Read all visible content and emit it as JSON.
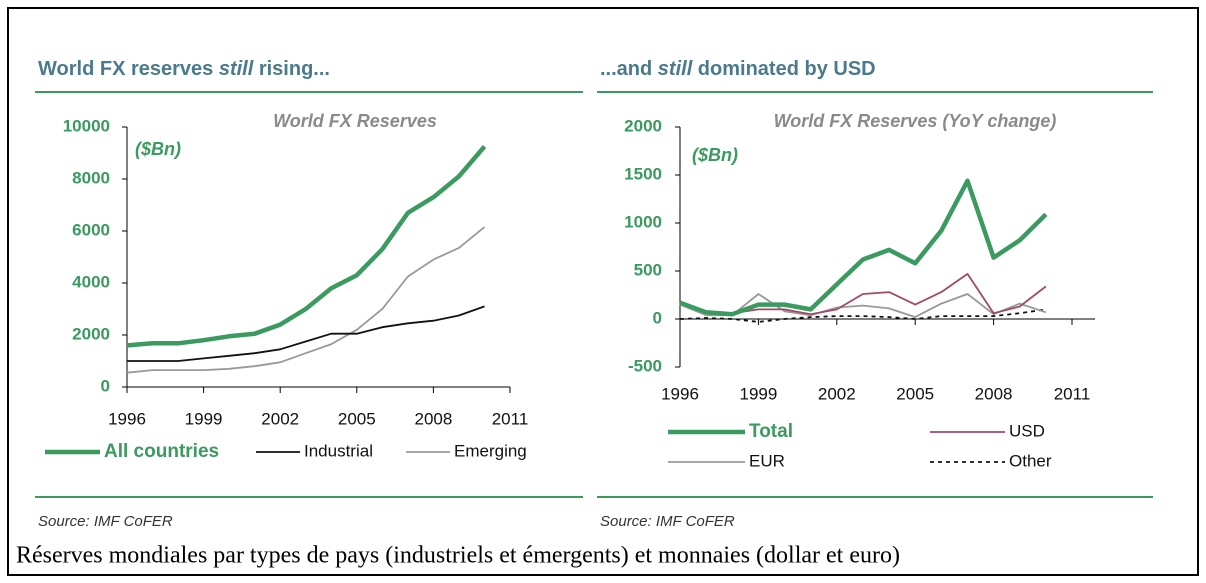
{
  "chart_data": [
    {
      "type": "line",
      "header": [
        "World FX reserves ",
        "still",
        " rising..."
      ],
      "title": "World FX Reserves",
      "unit_label": "($Bn)",
      "source": "Source: IMF CoFER",
      "x": [
        1996,
        1997,
        1998,
        1999,
        2000,
        2001,
        2002,
        2003,
        2004,
        2005,
        2006,
        2007,
        2008,
        2009,
        2010
      ],
      "xlim": [
        1996,
        2011
      ],
      "xticks": [
        1996,
        1999,
        2002,
        2005,
        2008,
        2011
      ],
      "ylim": [
        0,
        10000
      ],
      "yticks": [
        0,
        2000,
        4000,
        6000,
        8000,
        10000
      ],
      "series": [
        {
          "name": "All countries",
          "color": "#3a9a5f",
          "line": "thick",
          "values": [
            1600,
            1680,
            1680,
            1800,
            1950,
            2050,
            2400,
            3000,
            3800,
            4300,
            5300,
            6700,
            7300,
            8100,
            9250
          ]
        },
        {
          "name": "Industrial",
          "color": "#111111",
          "line": "thin",
          "values": [
            1000,
            1000,
            1000,
            1100,
            1200,
            1300,
            1450,
            1750,
            2050,
            2050,
            2300,
            2450,
            2550,
            2750,
            3100
          ]
        },
        {
          "name": "Emerging",
          "color": "#999999",
          "line": "thin",
          "values": [
            550,
            650,
            650,
            650,
            700,
            800,
            950,
            1300,
            1650,
            2200,
            3000,
            4250,
            4900,
            5350,
            6150
          ]
        }
      ]
    },
    {
      "type": "line",
      "header": [
        "...and ",
        "still",
        " dominated by USD"
      ],
      "title": "World FX Reserves (YoY change)",
      "unit_label": "($Bn)",
      "source": "Source: IMF CoFER",
      "x": [
        1996,
        1997,
        1998,
        1999,
        2000,
        2001,
        2002,
        2003,
        2004,
        2005,
        2006,
        2007,
        2008,
        2009,
        2010
      ],
      "xlim": [
        1996,
        2011
      ],
      "xticks": [
        1996,
        1999,
        2002,
        2005,
        2008,
        2011
      ],
      "ylim": [
        -500,
        2000
      ],
      "yticks": [
        -500,
        0,
        500,
        1000,
        1500,
        2000
      ],
      "series": [
        {
          "name": "Total",
          "color": "#3a9a5f",
          "line": "thick",
          "values": [
            170,
            70,
            50,
            150,
            150,
            100,
            360,
            620,
            720,
            580,
            920,
            1440,
            640,
            820,
            1090
          ]
        },
        {
          "name": "USD",
          "color": "#a04a6a",
          "line": "thin",
          "values": [
            180,
            80,
            60,
            100,
            100,
            50,
            100,
            260,
            280,
            150,
            280,
            470,
            60,
            130,
            340
          ]
        },
        {
          "name": "EUR",
          "color": "#999999",
          "line": "thin",
          "values": [
            150,
            40,
            40,
            260,
            80,
            40,
            120,
            140,
            110,
            20,
            160,
            260,
            50,
            160,
            70
          ]
        },
        {
          "name": "Other",
          "color": "#111111",
          "line": "dashed",
          "values": [
            0,
            10,
            0,
            -30,
            0,
            20,
            30,
            30,
            20,
            0,
            30,
            30,
            30,
            60,
            100
          ]
        }
      ]
    }
  ],
  "caption": "Réserves mondiales par types de pays (industriels et émergents) et monnaies (dollar et euro)"
}
